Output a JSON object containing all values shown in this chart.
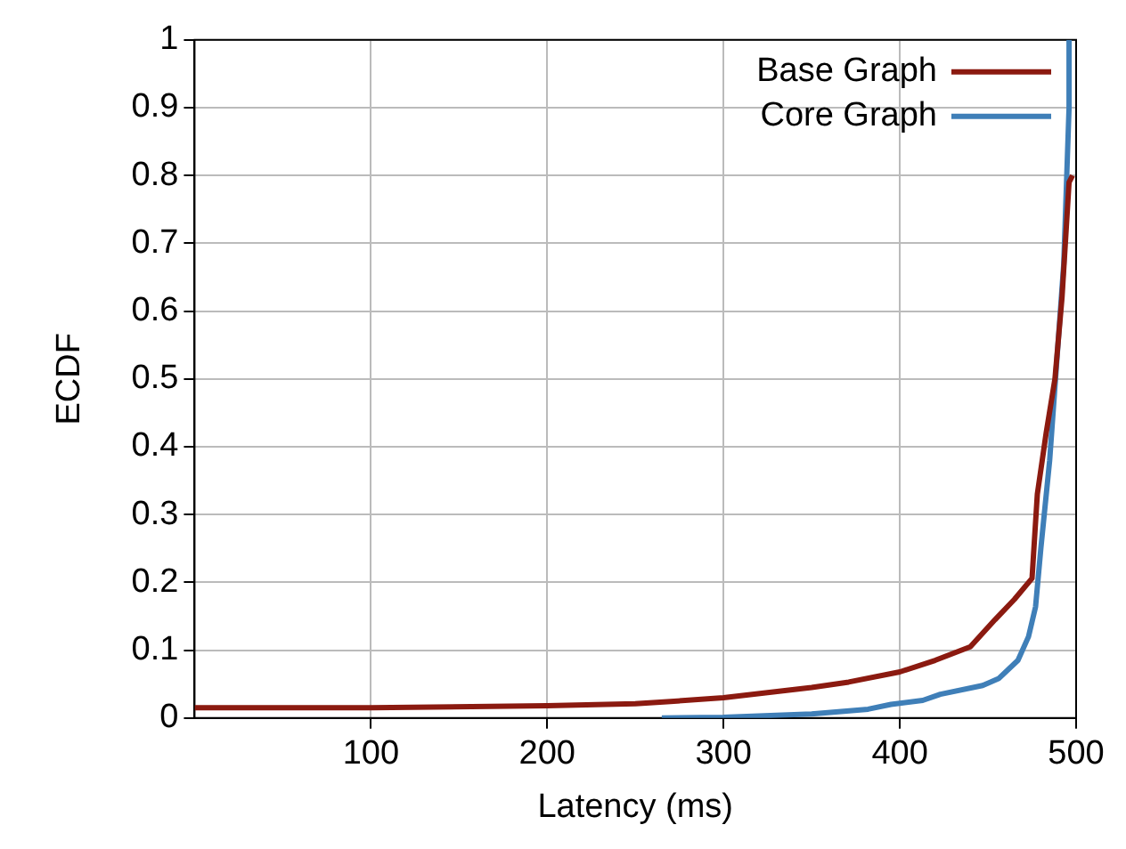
{
  "chart_data": {
    "type": "line",
    "xlabel": "Latency (ms)",
    "ylabel": "ECDF",
    "xlim": [
      0,
      500
    ],
    "xticks": [
      100,
      200,
      300,
      400,
      500
    ],
    "ylim": [
      0,
      1
    ],
    "yticks": [
      0,
      0.1,
      0.2,
      0.3,
      0.4,
      0.5,
      0.6,
      0.7,
      0.8,
      0.9,
      1
    ],
    "grid": true,
    "legend": "top right",
    "marker": "none",
    "line_style": "solid",
    "series": [
      {
        "name": "Base Graph",
        "color": "#8b1a10",
        "x": [
          0,
          100,
          200,
          250,
          268,
          300,
          350,
          371,
          400,
          420,
          440,
          454,
          465,
          475,
          478,
          483,
          488,
          492,
          496,
          498
        ],
        "values": [
          0.015,
          0.015,
          0.018,
          0.021,
          0.024,
          0.03,
          0.045,
          0.053,
          0.068,
          0.085,
          0.105,
          0.145,
          0.175,
          0.206,
          0.33,
          0.42,
          0.5,
          0.62,
          0.79,
          0.8
        ]
      },
      {
        "name": "Core Graph",
        "color": "#3f7fb8",
        "x": [
          265,
          300,
          350,
          382,
          395,
          413,
          423,
          447,
          456,
          467,
          473,
          477,
          480,
          485,
          493,
          496,
          496
        ],
        "values": [
          0,
          0.001,
          0.006,
          0.013,
          0.02,
          0.026,
          0.035,
          0.048,
          0.058,
          0.085,
          0.12,
          0.164,
          0.25,
          0.38,
          0.67,
          0.9,
          1
        ]
      }
    ]
  }
}
